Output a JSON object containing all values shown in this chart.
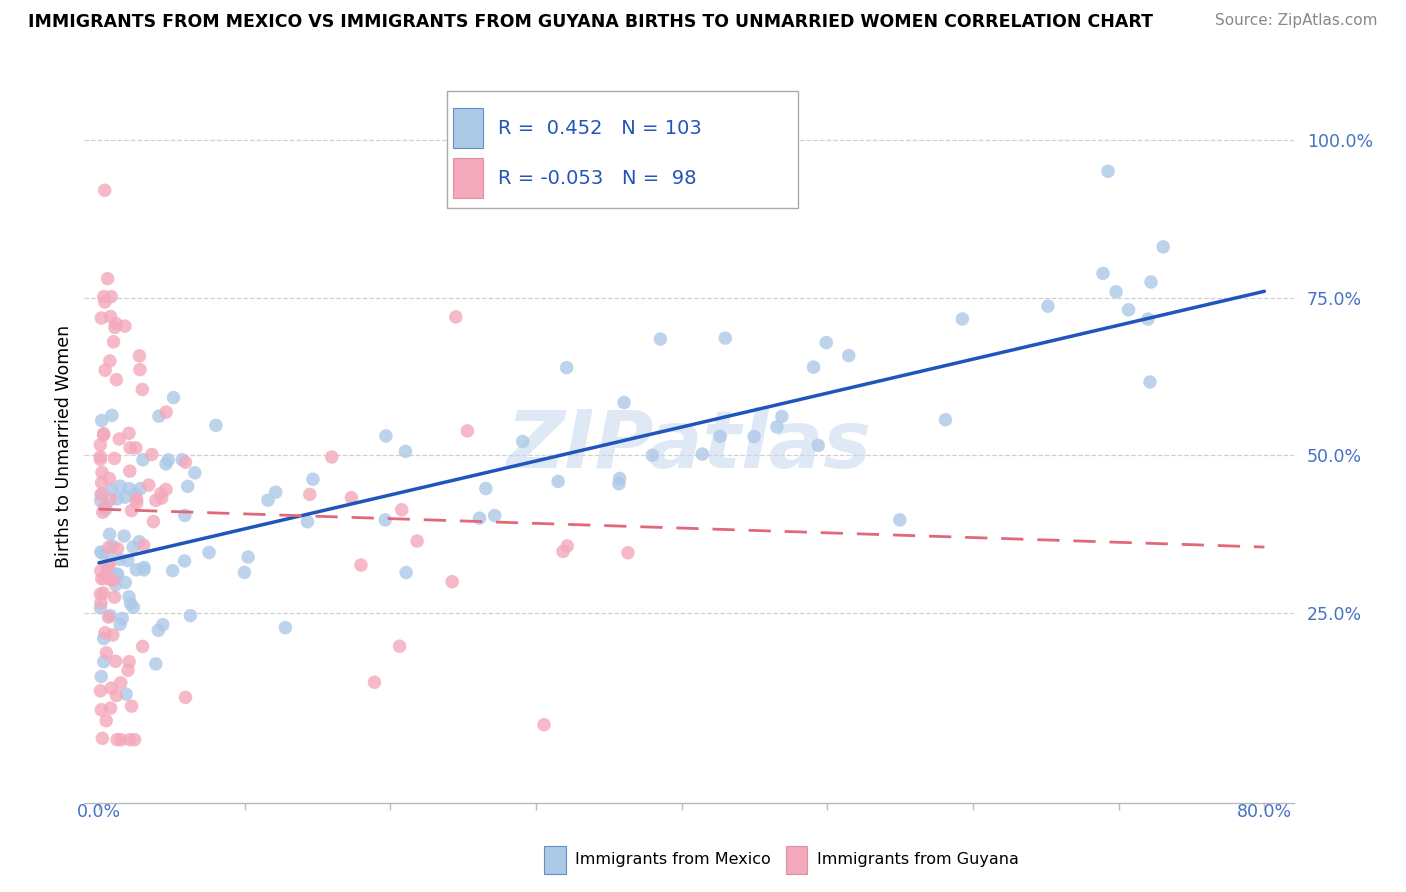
{
  "title": "IMMIGRANTS FROM MEXICO VS IMMIGRANTS FROM GUYANA BIRTHS TO UNMARRIED WOMEN CORRELATION CHART",
  "source": "Source: ZipAtlas.com",
  "ylabel": "Births to Unmarried Women",
  "legend_mexico": "Immigrants from Mexico",
  "legend_guyana": "Immigrants from Guyana",
  "R_mexico": "0.452",
  "N_mexico": "103",
  "R_guyana": "-0.053",
  "N_guyana": "98",
  "mexico_color": "#adc9e8",
  "guyana_color": "#f4a8bb",
  "mexico_line_color": "#2255bb",
  "guyana_line_color": "#e06878",
  "watermark": "ZIPatlas",
  "xlim": [
    0.0,
    0.8
  ],
  "ylim": [
    0.0,
    1.05
  ],
  "y_tick_vals": [
    0.25,
    0.5,
    0.75,
    1.0
  ],
  "y_tick_labels": [
    "25.0%",
    "50.0%",
    "75.0%",
    "100.0%"
  ],
  "mexico_line_x": [
    0.0,
    0.8
  ],
  "mexico_line_y": [
    0.33,
    0.76
  ],
  "guyana_line_x": [
    0.0,
    0.8
  ],
  "guyana_line_y": [
    0.415,
    0.355
  ],
  "background_color": "#ffffff",
  "grid_color": "#d0d0d0"
}
